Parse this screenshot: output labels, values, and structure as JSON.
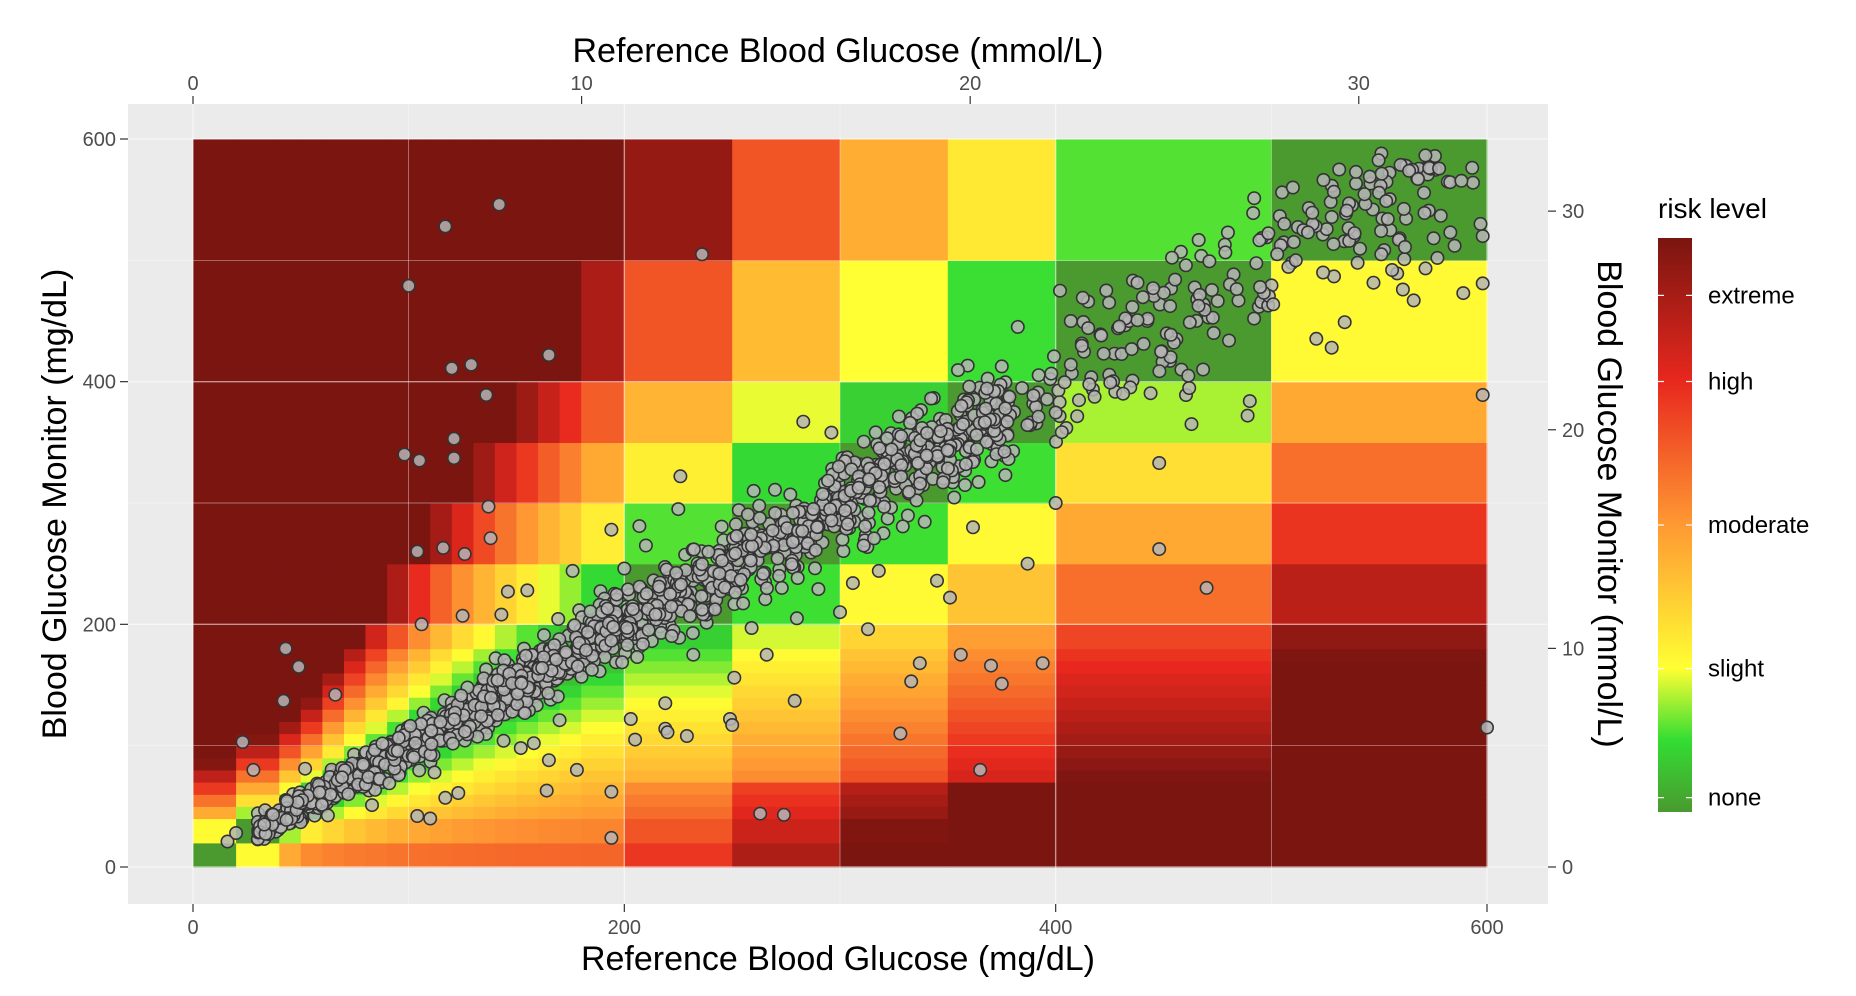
{
  "chart_data": {
    "type": "scatter",
    "title": "",
    "background": "heatmap",
    "x_axis_bottom": {
      "label": "Reference Blood Glucose (mg/dL)",
      "range": [
        0,
        600
      ],
      "ticks": [
        "0",
        "200",
        "400",
        "600"
      ],
      "tick_values": [
        0,
        200,
        400,
        600
      ]
    },
    "x_axis_top": {
      "label": "Reference Blood Glucose (mmol/L)",
      "range": [
        0,
        33.3
      ],
      "ticks": [
        "0",
        "10",
        "20",
        "30"
      ],
      "tick_values": [
        0,
        10,
        20,
        30
      ]
    },
    "y_axis_left": {
      "label": "Blood Glucose Monitor (mg/dL)",
      "range": [
        0,
        600
      ],
      "ticks": [
        "0",
        "200",
        "400",
        "600"
      ],
      "tick_values": [
        0,
        200,
        400,
        600
      ]
    },
    "y_axis_right": {
      "label": "Blood Glucose Monitor (mmol/L)",
      "range": [
        0,
        33.3
      ],
      "ticks": [
        "0",
        "10",
        "20",
        "30"
      ],
      "tick_values": [
        0,
        10,
        20,
        30
      ]
    },
    "grid": true,
    "legend": {
      "title": "risk level",
      "placement": "right",
      "labels": [
        "extreme",
        "high",
        "moderate",
        "slight",
        "none"
      ],
      "label_levels": [
        3.6,
        3.0,
        2.0,
        1.0,
        0.1
      ],
      "gradient_colors": [
        "#4a9a2f",
        "#33dd33",
        "#ffff33",
        "#ff9933",
        "#e8281e",
        "#7a1510"
      ],
      "gradient_levels": [
        0,
        0.5,
        1.0,
        2.0,
        3.0,
        4.0
      ]
    },
    "risk_bands_mgdl": [
      0,
      20,
      40,
      50,
      60,
      70,
      80,
      90,
      100,
      110,
      120,
      130,
      140,
      150,
      160,
      170,
      180,
      200,
      250,
      300,
      350,
      400,
      500,
      600
    ],
    "outlier_points": [
      [
        16,
        21
      ],
      [
        20,
        28
      ],
      [
        23,
        103
      ],
      [
        28,
        80
      ],
      [
        33,
        35
      ],
      [
        42,
        137
      ],
      [
        43,
        180
      ],
      [
        49,
        165
      ],
      [
        52,
        81
      ],
      [
        66,
        142
      ],
      [
        72,
        60
      ],
      [
        83,
        51
      ],
      [
        91,
        69
      ],
      [
        100,
        479
      ],
      [
        98,
        340
      ],
      [
        104,
        260
      ],
      [
        105,
        335
      ],
      [
        104,
        42
      ],
      [
        110,
        40
      ],
      [
        106,
        200
      ],
      [
        112,
        78
      ],
      [
        116,
        263
      ],
      [
        117,
        57
      ],
      [
        117,
        528
      ],
      [
        120,
        411
      ],
      [
        121,
        353
      ],
      [
        121,
        337
      ],
      [
        123,
        61
      ],
      [
        125,
        207
      ],
      [
        126,
        258
      ],
      [
        129,
        414
      ],
      [
        136,
        389
      ],
      [
        137,
        297
      ],
      [
        138,
        271
      ],
      [
        142,
        546
      ],
      [
        143,
        208
      ],
      [
        144,
        104
      ],
      [
        146,
        227
      ],
      [
        152,
        98
      ],
      [
        155,
        228
      ],
      [
        158,
        102
      ],
      [
        164,
        63
      ],
      [
        165,
        422
      ],
      [
        165,
        88
      ],
      [
        170,
        121
      ],
      [
        176,
        244
      ],
      [
        178,
        80
      ],
      [
        194,
        62
      ],
      [
        194,
        24
      ],
      [
        194,
        278
      ],
      [
        200,
        246
      ],
      [
        203,
        122
      ],
      [
        207,
        281
      ],
      [
        210,
        265
      ],
      [
        205,
        105
      ],
      [
        219,
        135
      ],
      [
        219,
        114
      ],
      [
        220,
        111
      ],
      [
        225,
        295
      ],
      [
        226,
        322
      ],
      [
        229,
        108
      ],
      [
        232,
        175
      ],
      [
        236,
        505
      ],
      [
        249,
        122
      ],
      [
        251,
        156
      ],
      [
        250,
        117
      ],
      [
        259,
        197
      ],
      [
        260,
        310
      ],
      [
        263,
        44
      ],
      [
        266,
        175
      ],
      [
        273,
        230
      ],
      [
        274,
        43
      ],
      [
        279,
        137
      ],
      [
        280,
        205
      ],
      [
        283,
        367
      ],
      [
        290,
        229
      ],
      [
        296,
        358
      ],
      [
        300,
        210
      ],
      [
        306,
        234
      ],
      [
        311,
        265
      ],
      [
        313,
        196
      ],
      [
        318,
        244
      ],
      [
        328,
        110
      ],
      [
        333,
        153
      ],
      [
        337,
        168
      ],
      [
        345,
        236
      ],
      [
        351,
        222
      ],
      [
        356,
        175
      ],
      [
        365,
        80
      ],
      [
        370,
        166
      ],
      [
        375,
        151
      ],
      [
        387,
        250
      ],
      [
        394,
        168
      ],
      [
        400,
        300
      ],
      [
        402,
        475
      ],
      [
        407,
        450
      ],
      [
        448,
        262
      ],
      [
        448,
        333
      ],
      [
        463,
        365
      ],
      [
        470,
        230
      ],
      [
        489,
        372
      ],
      [
        490,
        384
      ],
      [
        492,
        452
      ],
      [
        506,
        530
      ],
      [
        517,
        523
      ],
      [
        528,
        428
      ],
      [
        534,
        449
      ],
      [
        540,
        498
      ],
      [
        551,
        505
      ],
      [
        554,
        534
      ],
      [
        561,
        476
      ],
      [
        562,
        511
      ],
      [
        566,
        467
      ],
      [
        568,
        567
      ],
      [
        573,
        541
      ],
      [
        577,
        502
      ],
      [
        583,
        523
      ],
      [
        589,
        473
      ],
      [
        598,
        481
      ],
      [
        598,
        389
      ],
      [
        600,
        115
      ],
      [
        598,
        520
      ],
      [
        597,
        530
      ],
      [
        505,
        556
      ],
      [
        510,
        560
      ],
      [
        524,
        490
      ],
      [
        535,
        541
      ],
      [
        556,
        492
      ],
      [
        571,
        539
      ],
      [
        585,
        512
      ]
    ]
  }
}
